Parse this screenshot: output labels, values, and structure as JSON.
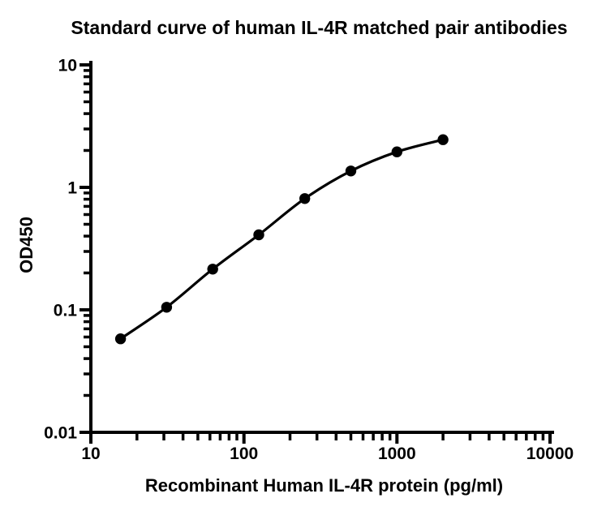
{
  "chart_data": {
    "type": "scatter",
    "title": "Standard curve of human IL-4R matched pair antibodies",
    "xlabel": "Recombinant Human IL-4R protein (pg/ml)",
    "ylabel": "OD450",
    "x_scale": "log10",
    "y_scale": "log10",
    "xlim": [
      10,
      10000
    ],
    "ylim": [
      0.01,
      10
    ],
    "x_tick_values": [
      10,
      100,
      1000,
      10000
    ],
    "x_tick_labels": [
      "10",
      "100",
      "1000",
      "10000"
    ],
    "y_tick_values": [
      10,
      1,
      0.1,
      0.01
    ],
    "y_tick_labels": [
      "10",
      "1",
      "0.1",
      "0.01"
    ],
    "minor_ticks": "log decades, outward-pointing",
    "grid": false,
    "legend": "none",
    "background": "#ffffff",
    "axis_color": "#000000",
    "series": [
      {
        "marker": "filled-circle",
        "line": "smooth",
        "color": "#000000",
        "x": [
          15.625,
          31.25,
          62.5,
          125,
          250,
          500,
          1000,
          2000
        ],
        "y": [
          0.058,
          0.105,
          0.215,
          0.41,
          0.81,
          1.36,
          1.95,
          2.45
        ]
      }
    ]
  }
}
